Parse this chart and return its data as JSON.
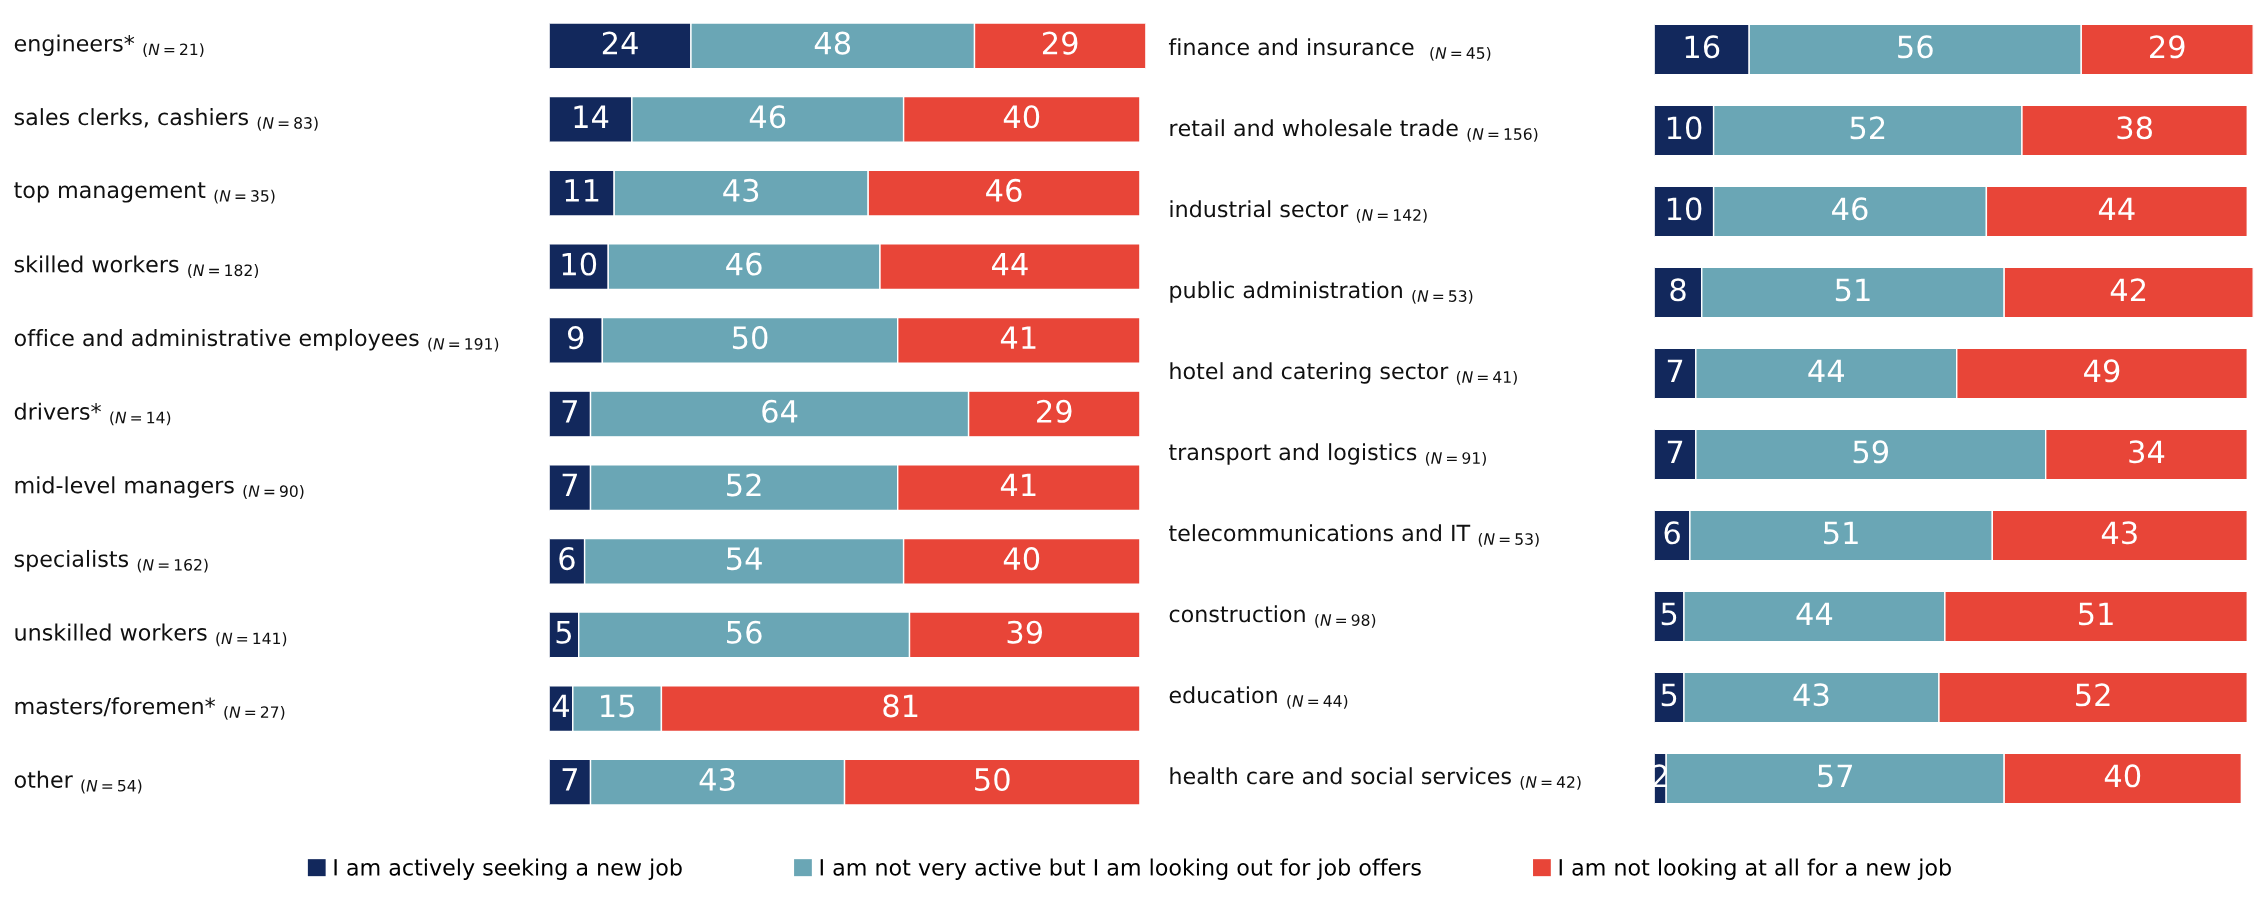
{
  "chart_data": [
    {
      "type": "bar",
      "orientation": "horizontal",
      "stacked": true,
      "data_labels": true,
      "tick_labels": false,
      "legend": "bottom",
      "xlim": [
        0,
        101
      ],
      "categories": [
        "engineers* $_{(N=21)}$",
        "sales clerks, cashiers $_{(N=83)}$",
        "top management $_{(N=35)}$",
        "skilled workers $_{(N=182)}$",
        "office and administrative employees $_{(N=191)}$",
        "drivers* $_{(N=14)}$",
        "mid-level managers $_{(N=90)}$",
        "specialists $_{(N=162)}$",
        "unskilled workers $_{(N=141)}$",
        "masters/foremen* $_{(N=27)}$",
        "other $_{(N=54)}$"
      ],
      "series": [
        {
          "name": "I am actively seeking a new job",
          "color": "#12285c",
          "values": [
            24,
            14,
            11,
            10,
            9,
            7,
            7,
            6,
            5,
            4,
            7
          ]
        },
        {
          "name": "I am not very active but I am looking out for job offers",
          "color": "#6aa6b5",
          "values": [
            48,
            46,
            43,
            46,
            50,
            64,
            52,
            54,
            56,
            15,
            43
          ]
        },
        {
          "name": "I am not looking at all for a new job",
          "color": "#e84538",
          "values": [
            29,
            40,
            46,
            44,
            41,
            29,
            41,
            40,
            39,
            81,
            50
          ]
        }
      ]
    },
    {
      "type": "bar",
      "orientation": "horizontal",
      "stacked": true,
      "data_labels": true,
      "tick_labels": false,
      "xlim": [
        0,
        101
      ],
      "categories": [
        "finance and insurance  $_{(N=45)}$",
        "retail and wholesale trade $_{(N=156)}$",
        "industrial sector $_{(N=142)}$",
        "public administration $_{(N=53)}$",
        "hotel and catering sector $_{(N=41)}$",
        "transport and logistics $_{(N=91)}$",
        "telecommunications and IT $_{(N=53)}$",
        "construction $_{(N=98)}$",
        "education $_{(N=44)}$",
        "health care and social services $_{(N=42)}$"
      ],
      "series": [
        {
          "color": "#12285c",
          "values": [
            16,
            10,
            10,
            8,
            7,
            7,
            6,
            5,
            5,
            2
          ]
        },
        {
          "color": "#6aa6b5",
          "values": [
            56,
            52,
            46,
            51,
            44,
            59,
            51,
            44,
            43,
            57
          ]
        },
        {
          "color": "#e84538",
          "values": [
            29,
            38,
            44,
            42,
            49,
            34,
            43,
            51,
            52,
            40
          ]
        }
      ]
    }
  ]
}
